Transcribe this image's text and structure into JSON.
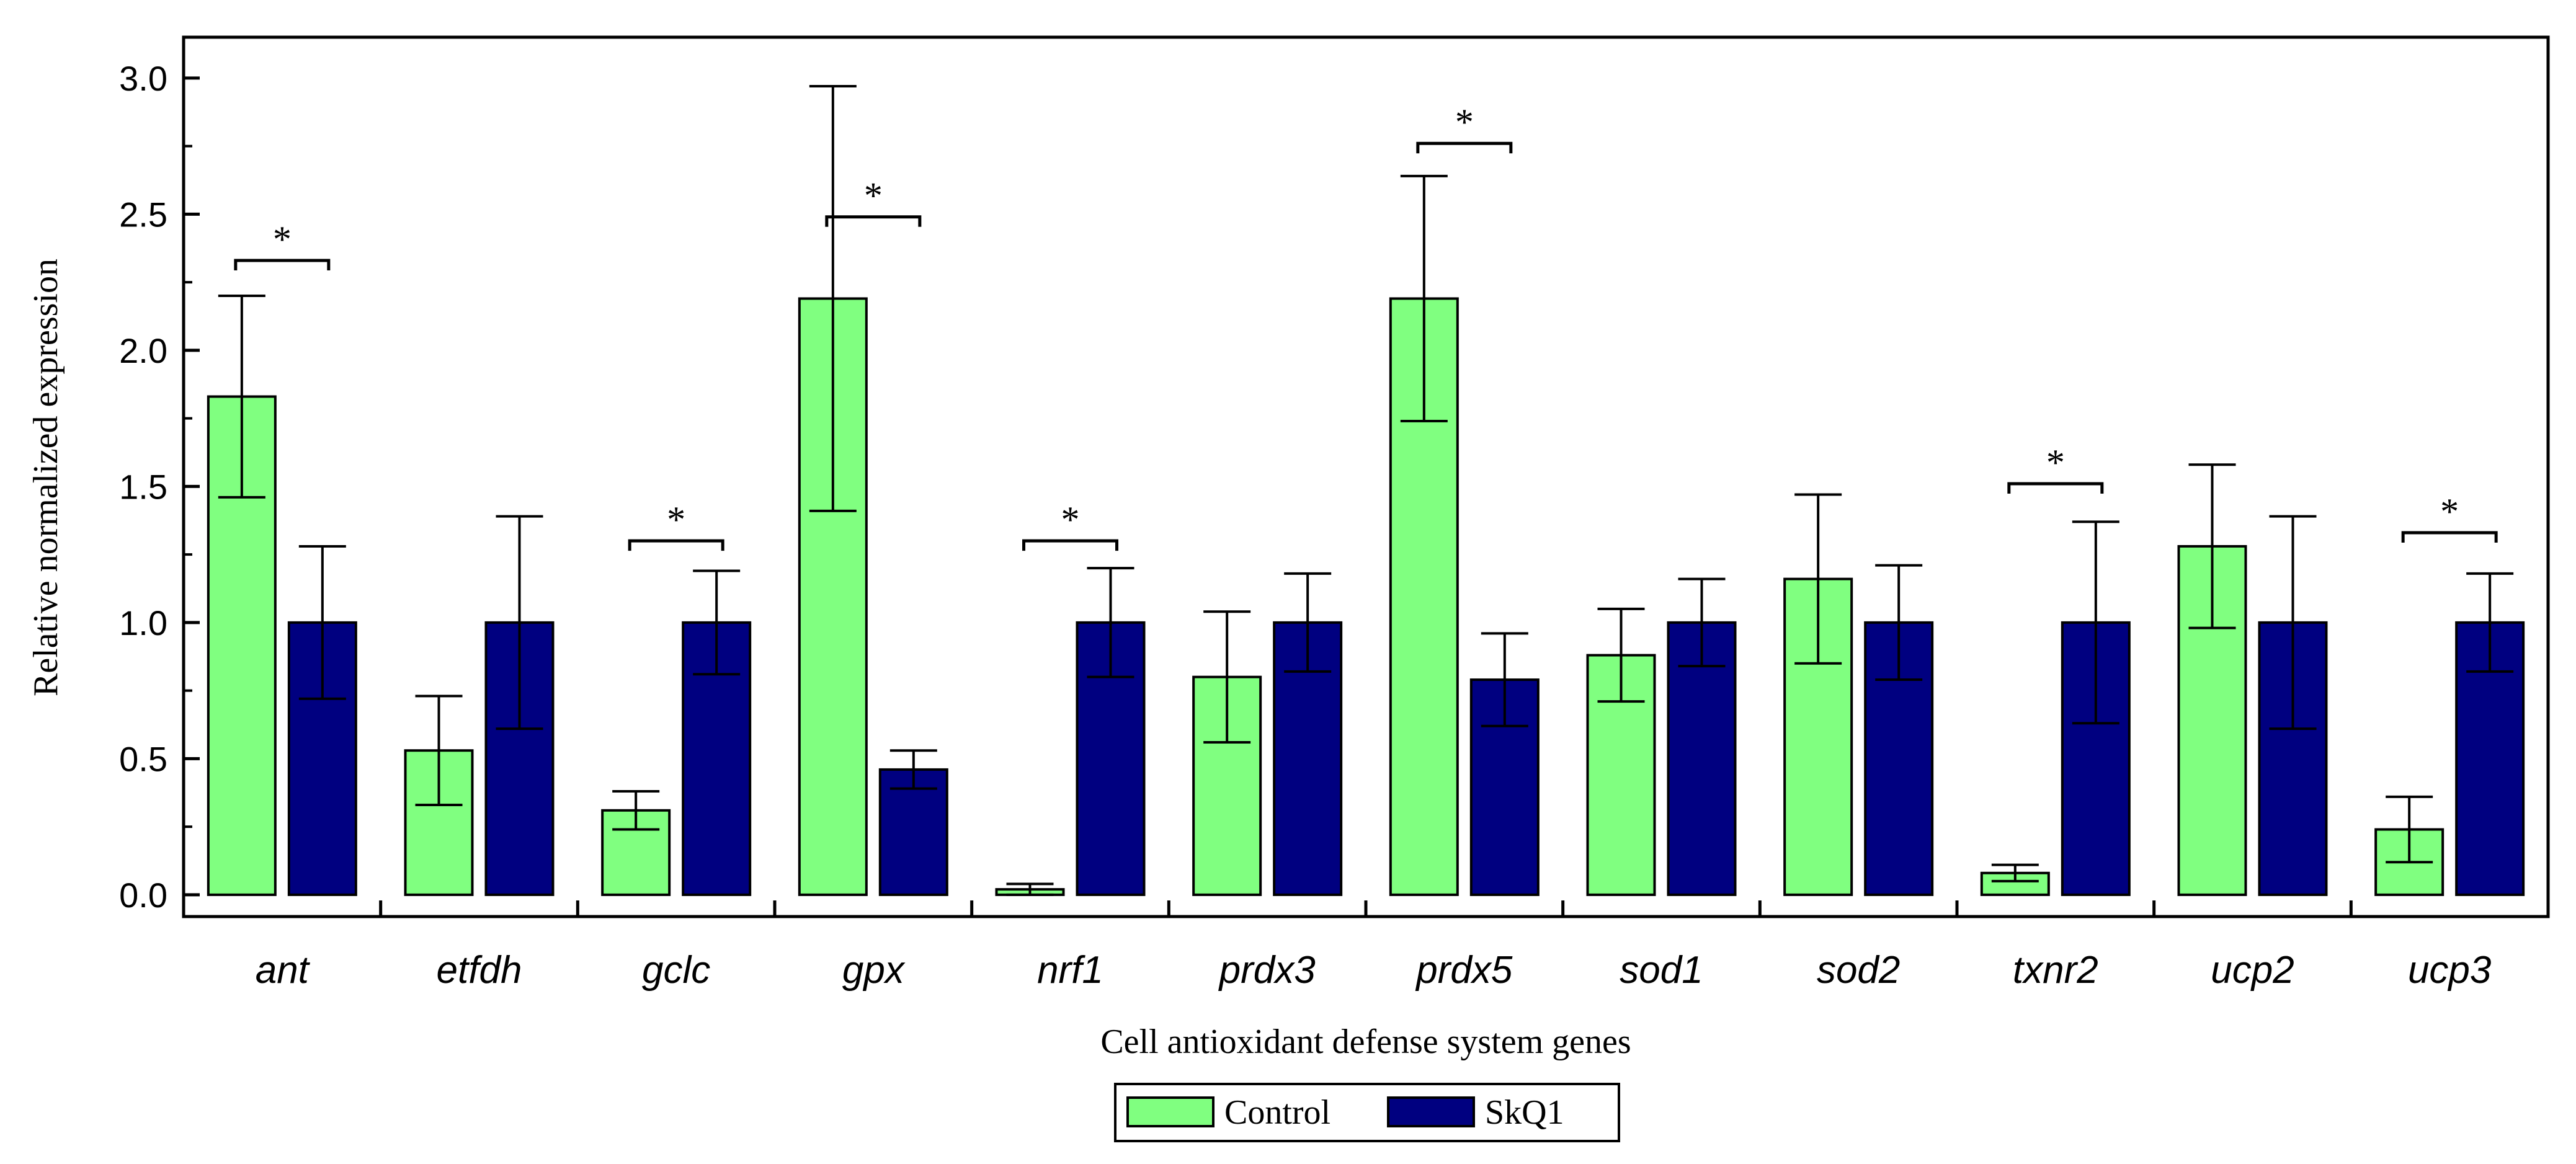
{
  "chart_data": {
    "type": "bar",
    "title": "",
    "xlabel": "Cell antioxidant defense system genes",
    "ylabel": "Relative normalized expression",
    "ylim": [
      -0.08,
      3.15
    ],
    "yticks": [
      "0.0",
      "0.5",
      "1.0",
      "1.5",
      "2.0",
      "2.5",
      "3.0"
    ],
    "ytick_values": [
      0,
      0.5,
      1.0,
      1.5,
      2.0,
      2.5,
      3.0
    ],
    "categories": [
      "ant",
      "etfdh",
      "gclc",
      "gpx",
      "nrf1",
      "prdx3",
      "prdx5",
      "sod1",
      "sod2",
      "txnr2",
      "ucp2",
      "ucp3"
    ],
    "series": [
      {
        "name": "Control",
        "color": "#80ff80",
        "values": [
          1.83,
          0.53,
          0.31,
          2.19,
          0.02,
          0.8,
          2.19,
          0.88,
          1.16,
          0.08,
          1.28,
          0.24
        ],
        "error": [
          0.37,
          0.2,
          0.07,
          0.78,
          0.02,
          0.24,
          0.45,
          0.17,
          0.31,
          0.03,
          0.3,
          0.12
        ]
      },
      {
        "name": "SkQ1",
        "color": "#000080",
        "values": [
          1.0,
          1.0,
          1.0,
          0.46,
          1.0,
          1.0,
          0.79,
          1.0,
          1.0,
          1.0,
          1.0,
          1.0
        ],
        "error": [
          0.28,
          0.39,
          0.19,
          0.07,
          0.2,
          0.18,
          0.17,
          0.16,
          0.21,
          0.37,
          0.39,
          0.18
        ]
      }
    ],
    "significance": [
      {
        "category": "ant",
        "level": 2.33,
        "label": "*"
      },
      {
        "category": "gclc",
        "level": 1.3,
        "label": "*"
      },
      {
        "category": "gpx",
        "level": 2.49,
        "label": "*"
      },
      {
        "category": "nrf1",
        "level": 1.3,
        "label": "*"
      },
      {
        "category": "prdx5",
        "level": 2.76,
        "label": "*"
      },
      {
        "category": "txnr2",
        "level": 1.51,
        "label": "*"
      },
      {
        "category": "ucp3",
        "level": 1.33,
        "label": "*"
      }
    ],
    "legend": {
      "placement": "bottom-center",
      "entries": [
        "Control",
        "SkQ1"
      ]
    },
    "grid": false
  }
}
